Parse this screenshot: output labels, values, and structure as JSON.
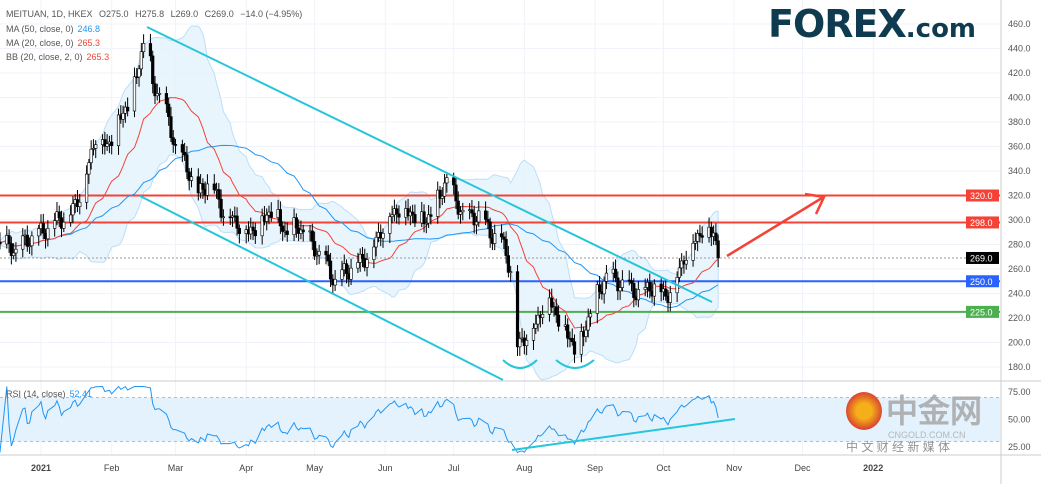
{
  "header": {
    "symbol": "MEITUAN, 1D, HKEX",
    "open": "O275.0",
    "high": "H275.8",
    "low": "L269.0",
    "close": "C269.0",
    "change": "−14.0 (−4.95%)"
  },
  "indicators": [
    {
      "label": "MA (50, close, 0)",
      "value": "246.8",
      "color": "#2196f3"
    },
    {
      "label": "MA (20, close, 0)",
      "value": "265.3",
      "color": "#f44336"
    },
    {
      "label": "BB (20, close, 2, 0)",
      "value": "265.3",
      "color": "#f44336"
    }
  ],
  "rsi": {
    "label": "RSI (14, close)",
    "value": "52.41"
  },
  "logo": {
    "text": "FOREX",
    "suffix": ".com"
  },
  "watermark": {
    "title": "中金网",
    "url": "CNGOLD.COM.CN",
    "tagline": "中 文 财 经 新 媒 体"
  },
  "chart_data": {
    "type": "candlestick",
    "title": "MEITUAN, 1D, HKEX",
    "ylim": [
      170,
      470
    ],
    "yticks": [
      "180.0",
      "200.0",
      "220.0",
      "240.0",
      "260.0",
      "280.0",
      "300.0",
      "320.0",
      "340.0",
      "360.0",
      "380.0",
      "400.0",
      "420.0",
      "440.0",
      "460.0"
    ],
    "xticks": [
      {
        "label": "2021",
        "day": 1,
        "bold": true
      },
      {
        "label": "Feb",
        "day": 32
      },
      {
        "label": "Mar",
        "day": 60
      },
      {
        "label": "Apr",
        "day": 91
      },
      {
        "label": "May",
        "day": 121
      },
      {
        "label": "Jun",
        "day": 152
      },
      {
        "label": "Jul",
        "day": 182
      },
      {
        "label": "Aug",
        "day": 213
      },
      {
        "label": "Sep",
        "day": 244
      },
      {
        "label": "Oct",
        "day": 274
      },
      {
        "label": "Nov",
        "day": 305
      },
      {
        "label": "Dec",
        "day": 335
      },
      {
        "label": "2022",
        "day": 366,
        "bold": true
      }
    ],
    "close_path": [
      [
        -18,
        282
      ],
      [
        -10,
        275
      ],
      [
        -4,
        285
      ],
      [
        1,
        290
      ],
      [
        8,
        300
      ],
      [
        14,
        305
      ],
      [
        20,
        330
      ],
      [
        25,
        370
      ],
      [
        30,
        360
      ],
      [
        36,
        385
      ],
      [
        41,
        400
      ],
      [
        47,
        455
      ],
      [
        50,
        410
      ],
      [
        54,
        400
      ],
      [
        60,
        360
      ],
      [
        66,
        340
      ],
      [
        70,
        320
      ],
      [
        75,
        335
      ],
      [
        80,
        310
      ],
      [
        86,
        300
      ],
      [
        92,
        290
      ],
      [
        98,
        300
      ],
      [
        103,
        310
      ],
      [
        108,
        290
      ],
      [
        114,
        295
      ],
      [
        120,
        280
      ],
      [
        126,
        265
      ],
      [
        130,
        250
      ],
      [
        134,
        258
      ],
      [
        140,
        265
      ],
      [
        146,
        275
      ],
      [
        152,
        300
      ],
      [
        158,
        310
      ],
      [
        164,
        305
      ],
      [
        170,
        300
      ],
      [
        176,
        320
      ],
      [
        179,
        335
      ],
      [
        183,
        315
      ],
      [
        188,
        300
      ],
      [
        193,
        305
      ],
      [
        198,
        290
      ],
      [
        203,
        285
      ],
      [
        207,
        260
      ],
      [
        209,
        195
      ],
      [
        213,
        205
      ],
      [
        218,
        215
      ],
      [
        223,
        240
      ],
      [
        228,
        220
      ],
      [
        233,
        205
      ],
      [
        236,
        190
      ],
      [
        240,
        215
      ],
      [
        244,
        235
      ],
      [
        249,
        255
      ],
      [
        254,
        250
      ],
      [
        259,
        245
      ],
      [
        264,
        240
      ],
      [
        270,
        248
      ],
      [
        275,
        238
      ],
      [
        279,
        250
      ],
      [
        283,
        270
      ],
      [
        288,
        285
      ],
      [
        292,
        295
      ],
      [
        296,
        290
      ],
      [
        299,
        269
      ]
    ],
    "horizontal_levels": [
      {
        "value": 320,
        "label": "320.0",
        "color": "#f44336"
      },
      {
        "value": 298,
        "label": "298.0",
        "color": "#f44336"
      },
      {
        "value": 250,
        "label": "250.0",
        "color": "#2962ff"
      },
      {
        "value": 225,
        "label": "225.0",
        "color": "#4caf50"
      }
    ],
    "last_price": {
      "value": 269,
      "label": "269.0"
    },
    "rsi_ticks": [
      "75.00",
      "50.00",
      "25.00"
    ],
    "colors": {
      "up": "#ffffff",
      "down": "#000000",
      "ma20": "#f44336",
      "ma50": "#2196f3",
      "channel": "#26c6da",
      "arrow": "#f44336",
      "bb_fill": "#e3f2fd"
    }
  }
}
